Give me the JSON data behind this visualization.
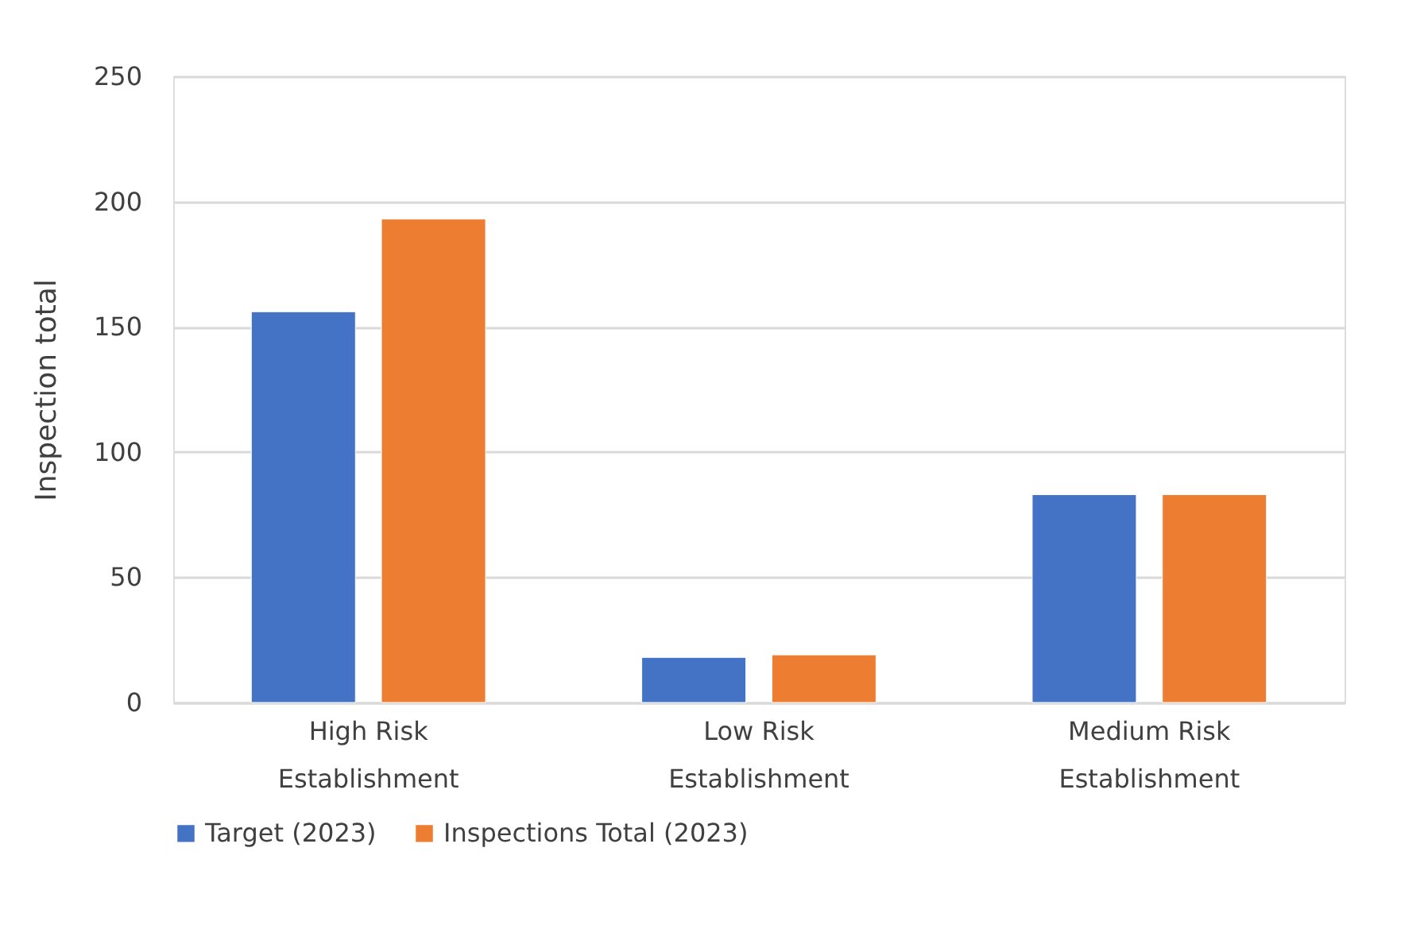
{
  "chart_data": {
    "type": "bar",
    "ylabel": "Inspection total",
    "categories": [
      "High Risk Establishment",
      "Low Risk Establishment",
      "Medium Risk Establishment"
    ],
    "series": [
      {
        "name": "Target (2023)",
        "color": "#4472c4",
        "values": [
          156,
          18,
          83
        ]
      },
      {
        "name": "Inspections Total (2023)",
        "color": "#ed7d31",
        "values": [
          193,
          19,
          83
        ]
      }
    ],
    "ylim": [
      0,
      250
    ],
    "yticks": [
      0,
      50,
      100,
      150,
      200,
      250
    ],
    "grid": "y",
    "legend": "bottom"
  }
}
